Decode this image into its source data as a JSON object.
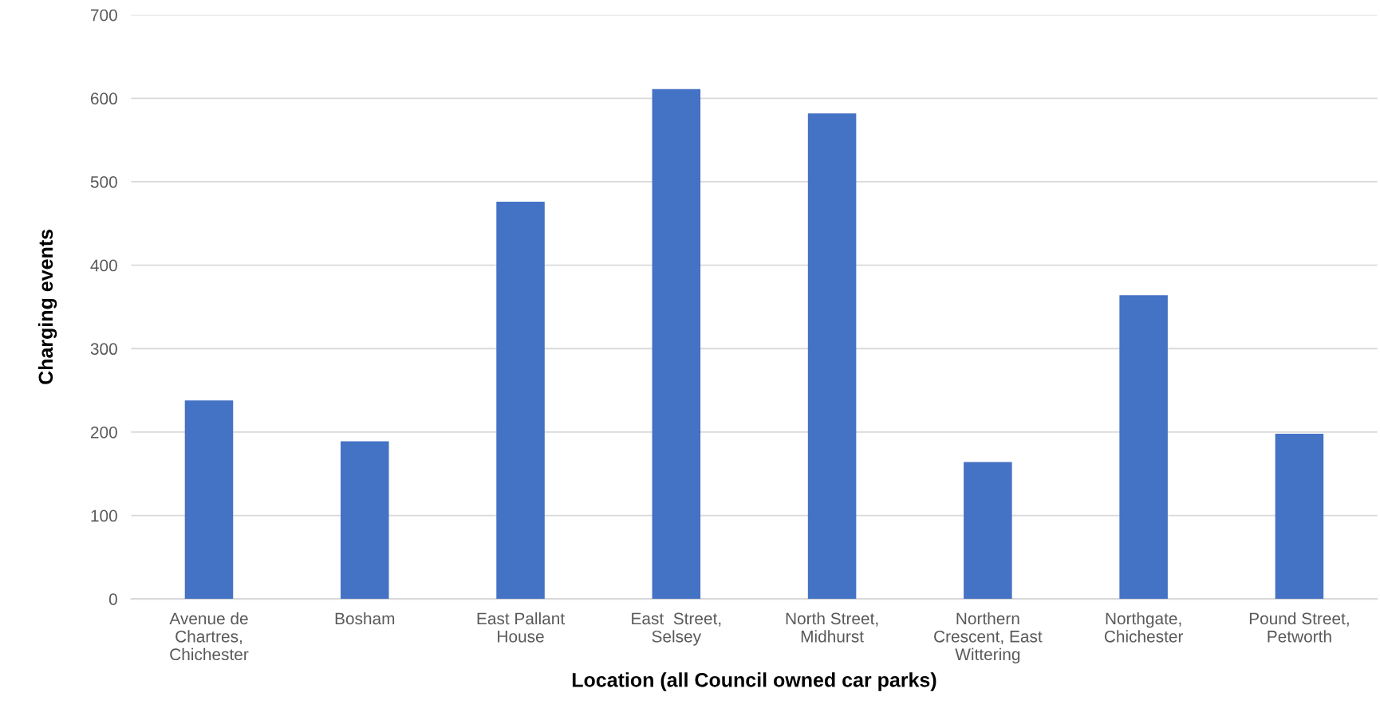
{
  "chart_data": {
    "type": "bar",
    "xlabel": "Location (all Council owned car parks)",
    "ylabel": "Charging events",
    "categories": [
      "Avenue de\nChartres,\nChichester",
      "Bosham",
      "East Pallant\nHouse",
      "East  Street,\nSelsey",
      "North Street,\nMidhurst",
      "Northern\nCrescent, East\nWittering",
      "Northgate,\nChichester",
      "Pound Street,\nPetworth"
    ],
    "values": [
      238,
      189,
      476,
      611,
      582,
      164,
      364,
      198
    ],
    "color": "#4472c4",
    "ylim": [
      0,
      700
    ],
    "yticks": [
      0,
      100,
      200,
      300,
      400,
      500,
      600,
      700
    ],
    "grid": "y",
    "legend": false
  }
}
